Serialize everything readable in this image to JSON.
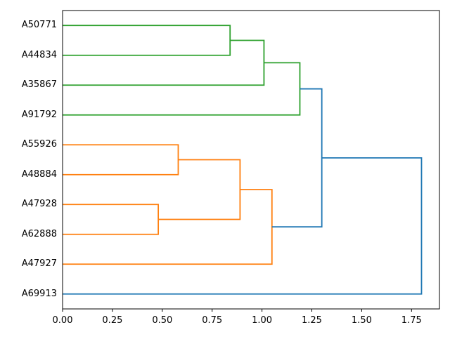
{
  "figure": {
    "background": "#ffffff"
  },
  "chart_data": {
    "type": "dendrogram",
    "orientation": "leaves-left-root-right",
    "title": "",
    "leaves": [
      "A50771",
      "A44834",
      "A35867",
      "A91792",
      "A55926",
      "A48884",
      "A47928",
      "A62888",
      "A47927",
      "A69913"
    ],
    "links": [
      {
        "id": "n1",
        "a": "A50771",
        "b": "A44834",
        "height": 0.84,
        "color": "#2ca02c"
      },
      {
        "id": "n2",
        "a": "n1",
        "b": "A35867",
        "height": 1.01,
        "color": "#2ca02c"
      },
      {
        "id": "n3",
        "a": "n2",
        "b": "A91792",
        "height": 1.19,
        "color": "#2ca02c"
      },
      {
        "id": "n4",
        "a": "A55926",
        "b": "A48884",
        "height": 0.58,
        "color": "#ff7f0e"
      },
      {
        "id": "n5",
        "a": "A47928",
        "b": "A62888",
        "height": 0.48,
        "color": "#ff7f0e"
      },
      {
        "id": "n6",
        "a": "n4",
        "b": "n5",
        "height": 0.89,
        "color": "#ff7f0e"
      },
      {
        "id": "n7",
        "a": "n6",
        "b": "A47927",
        "height": 1.05,
        "color": "#ff7f0e"
      },
      {
        "id": "n8",
        "a": "n3",
        "b": "n7",
        "height": 1.3,
        "color": "#1f77b4"
      },
      {
        "id": "n9",
        "a": "n8",
        "b": "A69913",
        "height": 1.8,
        "color": "#1f77b4"
      }
    ],
    "x_axis": {
      "tick_labels": [
        "0.00",
        "0.25",
        "0.50",
        "0.75",
        "1.00",
        "1.25",
        "1.50",
        "1.75"
      ],
      "tick_values": [
        0,
        0.25,
        0.5,
        0.75,
        1.0,
        1.25,
        1.5,
        1.75
      ],
      "min": 0,
      "max": 1.89
    },
    "colors": {
      "cluster_green": "#2ca02c",
      "cluster_orange": "#ff7f0e",
      "link_blue": "#1f77b4",
      "spine": "#000000",
      "text": "#000000"
    }
  }
}
